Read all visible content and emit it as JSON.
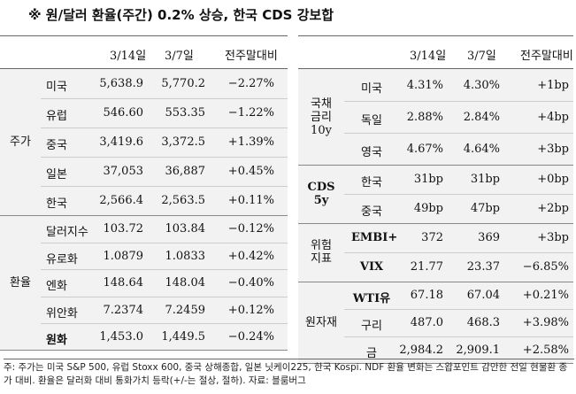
{
  "title": "※ 원/달러 환율(주간) 0.2% 상승, 한국 CDS 강보합",
  "left_table": {
    "headers": [
      "3/14일",
      "3/7일",
      "전주말대비"
    ],
    "groups": [
      {
        "label": "주가",
        "rows": [
          {
            "name": "미국",
            "a": "5,638.9",
            "b": "5,770.2",
            "c": "−2.27%"
          },
          {
            "name": "유럽",
            "a": "546.60",
            "b": "553.35",
            "c": "−1.22%"
          },
          {
            "name": "중국",
            "a": "3,419.6",
            "b": "3,372.5",
            "c": "+1.39%"
          },
          {
            "name": "일본",
            "a": "37,053",
            "b": "36,887",
            "c": "+0.45%"
          },
          {
            "name": "한국",
            "a": "2,566.4",
            "b": "2,563.5",
            "c": "+0.11%"
          }
        ]
      },
      {
        "label": "환율",
        "rows": [
          {
            "name": "달러지수",
            "a": "103.72",
            "b": "103.84",
            "c": "−0.12%"
          },
          {
            "name": "유로화",
            "a": "1.0879",
            "b": "1.0833",
            "c": "+0.42%"
          },
          {
            "name": "엔화",
            "a": "148.64",
            "b": "148.04",
            "c": "−0.40%"
          },
          {
            "name": "위안화",
            "a": "7.2374",
            "b": "7.2459",
            "c": "+0.12%"
          },
          {
            "name": "원화",
            "a": "1,453.0",
            "b": "1,449.5",
            "c": "−0.24%"
          }
        ]
      }
    ]
  },
  "right_table": {
    "headers": [
      "3/14일",
      "3/7일",
      "전주말대비"
    ],
    "groups": [
      {
        "label": "국채\n금리\n10y",
        "rows": [
          {
            "name": "미국",
            "a": "4.31%",
            "b": "4.30%",
            "c": "+1bp"
          },
          {
            "name": "독일",
            "a": "2.88%",
            "b": "2.84%",
            "c": "+4bp"
          },
          {
            "name": "영국",
            "a": "4.67%",
            "b": "4.64%",
            "c": "+3bp"
          }
        ]
      },
      {
        "label": "CDS\n5y",
        "rows": [
          {
            "name": "한국",
            "a": "31bp",
            "b": "31bp",
            "c": "+0bp"
          },
          {
            "name": "중국",
            "a": "49bp",
            "b": "47bp",
            "c": "+2bp"
          }
        ]
      },
      {
        "label": "위험\n지표",
        "rows": [
          {
            "name": "EMBI+",
            "a": "372",
            "b": "369",
            "c": "+3bp"
          },
          {
            "name": "VIX",
            "a": "21.77",
            "b": "23.37",
            "c": "−6.85%"
          }
        ]
      },
      {
        "label": "원자재",
        "rows": [
          {
            "name": "WTI유",
            "a": "67.18",
            "b": "67.04",
            "c": "+0.21%"
          },
          {
            "name": "구리",
            "a": "487.0",
            "b": "468.3",
            "c": "+3.98%"
          },
          {
            "name": "금",
            "a": "2,984.2",
            "b": "2,909.1",
            "c": "+2.58%"
          }
        ]
      }
    ]
  },
  "footnote": "주: 주가는 미국 S&P 500, 유럽 Stoxx 600, 중국 상해종합, 일본 닛케이225, 한국 Kospi. NDF 환율 변화는 스왑포인트 감안한 전일 현물환 종가 대비. 환율은 달러화 대비 통화가치 등락(+/-는 절상, 절하). 자료: 블룸버그"
}
